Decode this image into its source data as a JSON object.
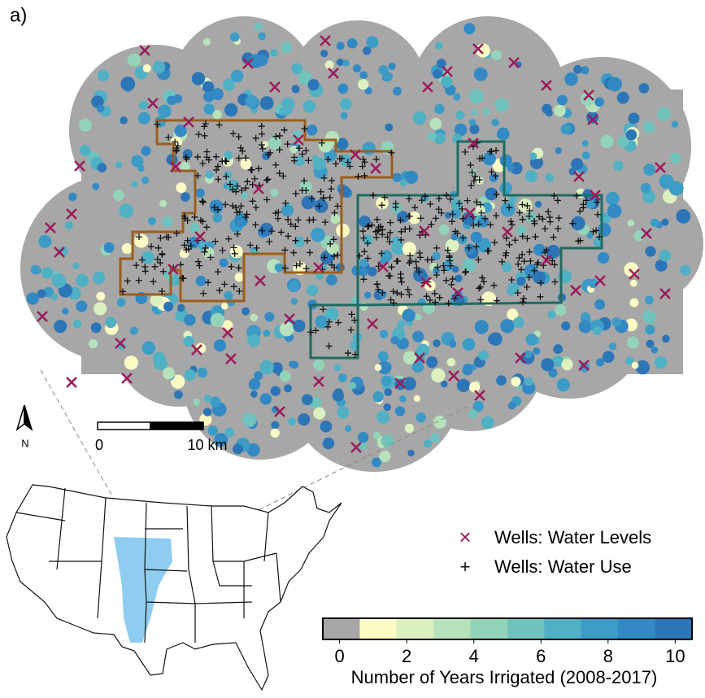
{
  "panel_label": "a)",
  "north_label": "N",
  "scale_bar": {
    "labels": [
      "0",
      "10 km"
    ]
  },
  "legend": {
    "items": [
      {
        "name": "Wells: Water Levels",
        "color": "#9b1b5a"
      },
      {
        "name": "Wells: Water Use",
        "color": "#111111"
      }
    ]
  },
  "colorbar": {
    "label": "Number of Years Irrigated (2008-2017)",
    "colors": [
      "#a7a7a7",
      "#fdfbc4",
      "#dcf0c0",
      "#b7e2bb",
      "#93d4b8",
      "#6fc3bc",
      "#50b0c4",
      "#3c9cc6",
      "#3389c3",
      "#2c75b6"
    ],
    "lim": [
      -0.5,
      10.5
    ],
    "ticks": [
      0,
      2,
      4,
      6,
      8,
      10
    ]
  }
}
